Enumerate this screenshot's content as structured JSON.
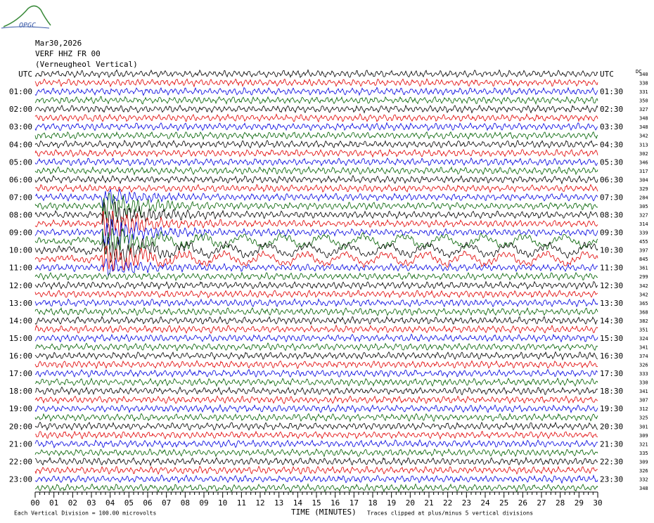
{
  "logo": "OPGC",
  "header": {
    "date": "Mar30,2026",
    "station": "VERF HHZ FR 00",
    "station_name": "(Verneugheol Vertical)"
  },
  "dc_header": "DC",
  "footer": {
    "scale_note": "Each Vertical Division =  100.00 microvolts",
    "x_title": "TIME (MINUTES)",
    "clip_note": "Traces clipped at plus/minus 5 vertical divisions"
  },
  "trace_colors": [
    "#000000",
    "#e00000",
    "#0000e0",
    "#006000"
  ],
  "left_labels": [
    "UTC",
    "01:00",
    "02:00",
    "03:00",
    "04:00",
    "05:00",
    "06:00",
    "07:00",
    "08:00",
    "09:00",
    "10:00",
    "11:00",
    "12:00",
    "13:00",
    "14:00",
    "15:00",
    "16:00",
    "17:00",
    "18:00",
    "19:00",
    "20:00",
    "21:00",
    "22:00",
    "23:00"
  ],
  "right_labels": [
    "UTC",
    "01:30",
    "02:30",
    "03:30",
    "04:30",
    "05:30",
    "06:30",
    "07:30",
    "08:30",
    "09:30",
    "10:30",
    "11:30",
    "12:30",
    "13:30",
    "14:30",
    "15:30",
    "16:30",
    "17:30",
    "18:30",
    "19:30",
    "20:30",
    "21:30",
    "22:30",
    "23:30"
  ],
  "dc_values": [
    340,
    338,
    331,
    350,
    327,
    348,
    348,
    342,
    313,
    302,
    346,
    317,
    304,
    329,
    284,
    305,
    327,
    314,
    339,
    455,
    397,
    845,
    361,
    299,
    342,
    342,
    365,
    368,
    382,
    351,
    324,
    341,
    374,
    326,
    333,
    330,
    341,
    307,
    312,
    325,
    301,
    309,
    321,
    335,
    309,
    326,
    332,
    348
  ],
  "xlim": [
    0,
    30
  ],
  "xticks": [
    {
      "value": 0,
      "label": "00"
    },
    {
      "value": 1,
      "label": "01"
    },
    {
      "value": 2,
      "label": "02"
    },
    {
      "value": 3,
      "label": "03"
    },
    {
      "value": 4,
      "label": "04"
    },
    {
      "value": 5,
      "label": "05"
    },
    {
      "value": 6,
      "label": "06"
    },
    {
      "value": 7,
      "label": "07"
    },
    {
      "value": 8,
      "label": "08"
    },
    {
      "value": 9,
      "label": "09"
    },
    10,
    11,
    12,
    13,
    14,
    15,
    16,
    17,
    18,
    19,
    20,
    21,
    22,
    23,
    24,
    25,
    26,
    27,
    28,
    29,
    30
  ]
}
